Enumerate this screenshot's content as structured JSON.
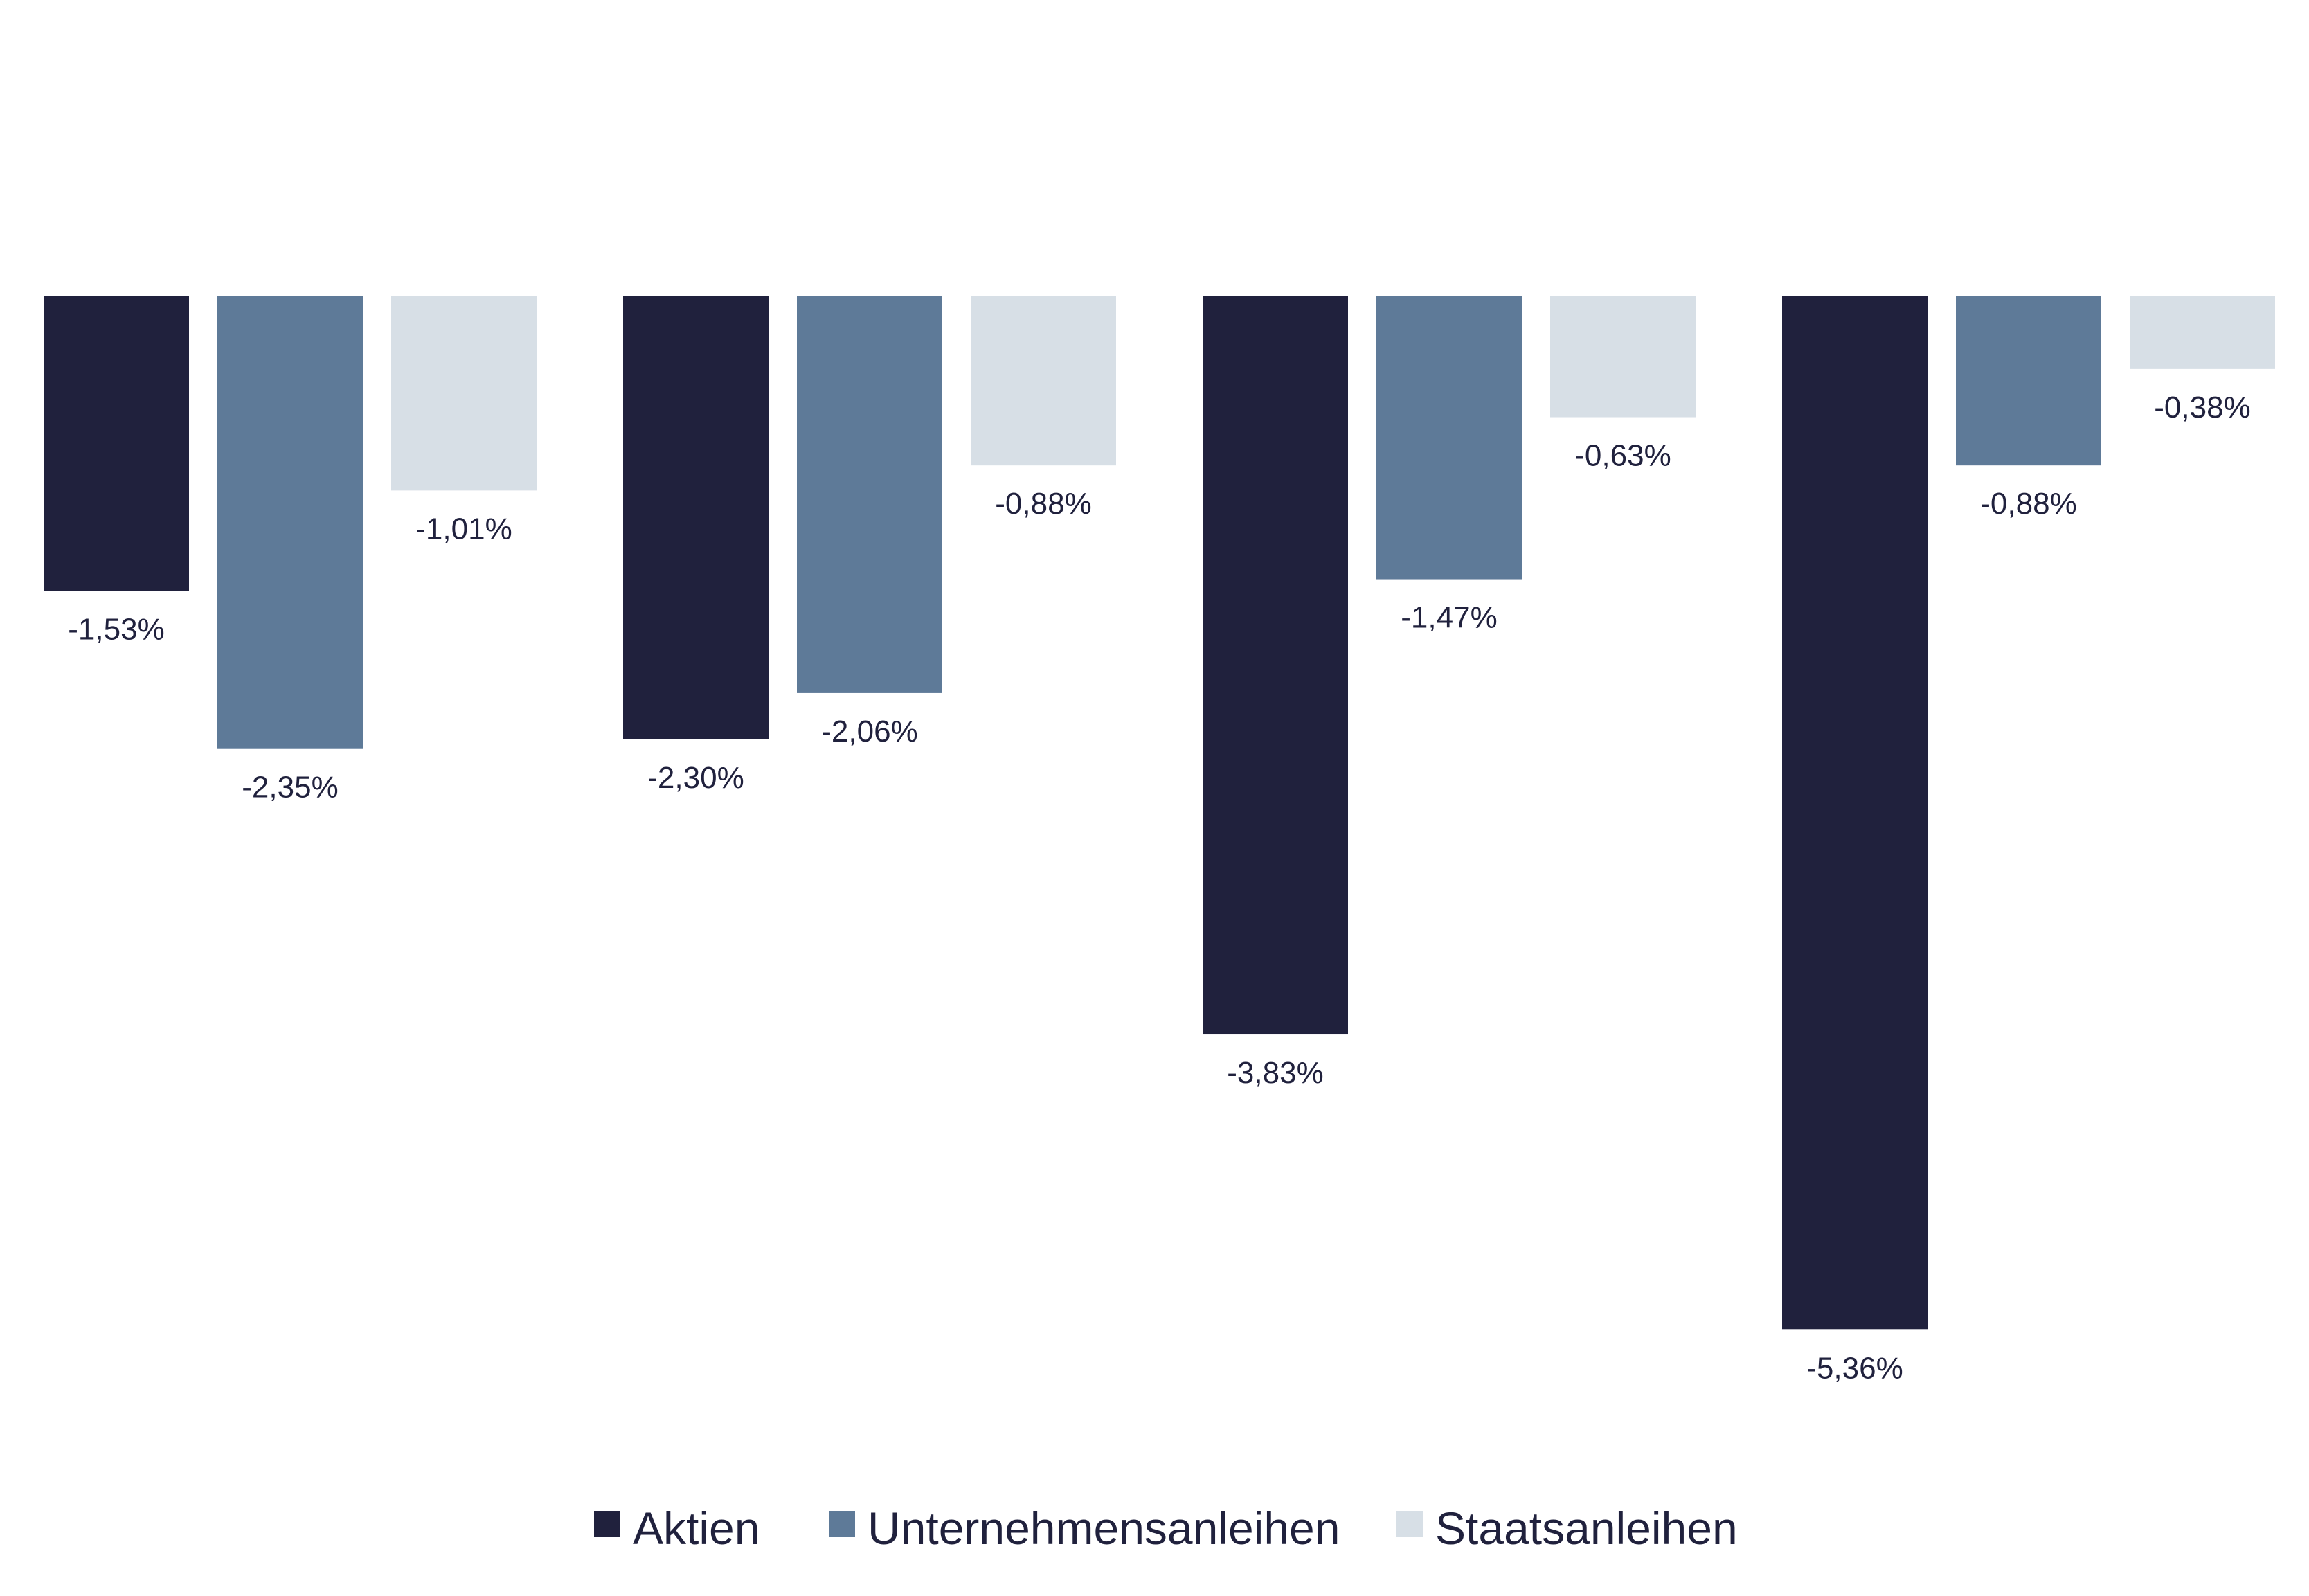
{
  "chart_data": {
    "type": "bar",
    "title": "",
    "xlabel": "",
    "ylabel": "",
    "categories": [
      "",
      "",
      "",
      ""
    ],
    "ylim": [
      -6,
      0
    ],
    "grid": false,
    "legend_position": "bottom-center",
    "series": [
      {
        "name": "Aktien",
        "color": "#20213d",
        "values": [
          -1.53,
          -2.3,
          -3.83,
          -5.36
        ],
        "labels": [
          "-1,53%",
          "-2,30%",
          "-3,83%",
          "-5,36%"
        ]
      },
      {
        "name": "Unternehmensanleihen",
        "color": "#5e7a98",
        "values": [
          -2.35,
          -2.06,
          -1.47,
          -0.88
        ],
        "labels": [
          "-2,35%",
          "-2,06%",
          "-1,47%",
          "-0,88%"
        ]
      },
      {
        "name": "Staatsanleihen",
        "color": "#d7dfe6",
        "values": [
          -1.01,
          -0.88,
          -0.63,
          -0.38
        ],
        "labels": [
          "-1,01%",
          "-0,88%",
          "-0,63%",
          "-0,38%"
        ]
      }
    ]
  }
}
